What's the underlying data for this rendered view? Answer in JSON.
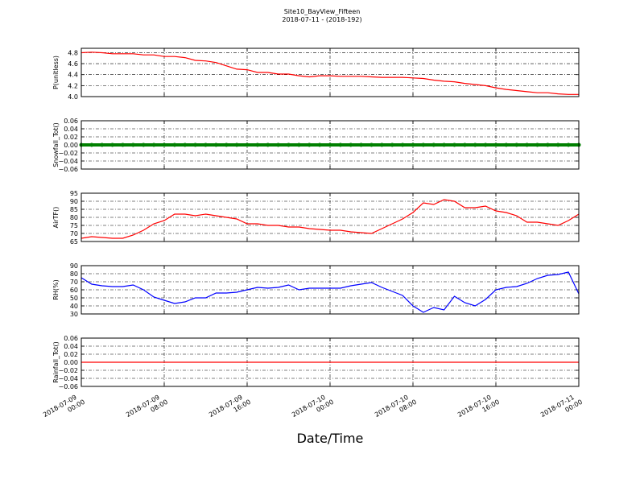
{
  "title": "Site10_BayView_Fifteen",
  "subtitle": "2018-07-11 - (2018-192)",
  "xlabel": "Date/Time",
  "xlim": [
    "2018-07-09 00:00",
    "2018-07-11 00:00"
  ],
  "xticks": [
    "2018-07-09 00:00",
    "2018-07-09 08:00",
    "2018-07-09 16:00",
    "2018-07-10 00:00",
    "2018-07-10 08:00",
    "2018-07-10 16:00",
    "2018-07-11 00:00"
  ],
  "x": [
    "2018-07-09 00:00",
    "2018-07-09 01:00",
    "2018-07-09 02:00",
    "2018-07-09 03:00",
    "2018-07-09 04:00",
    "2018-07-09 05:00",
    "2018-07-09 06:00",
    "2018-07-09 07:00",
    "2018-07-09 08:00",
    "2018-07-09 09:00",
    "2018-07-09 10:00",
    "2018-07-09 11:00",
    "2018-07-09 12:00",
    "2018-07-09 13:00",
    "2018-07-09 14:00",
    "2018-07-09 15:00",
    "2018-07-09 16:00",
    "2018-07-09 17:00",
    "2018-07-09 18:00",
    "2018-07-09 19:00",
    "2018-07-09 20:00",
    "2018-07-09 21:00",
    "2018-07-09 22:00",
    "2018-07-09 23:00",
    "2018-07-10 00:00",
    "2018-07-10 01:00",
    "2018-07-10 02:00",
    "2018-07-10 03:00",
    "2018-07-10 04:00",
    "2018-07-10 05:00",
    "2018-07-10 06:00",
    "2018-07-10 07:00",
    "2018-07-10 08:00",
    "2018-07-10 09:00",
    "2018-07-10 10:00",
    "2018-07-10 11:00",
    "2018-07-10 12:00",
    "2018-07-10 13:00",
    "2018-07-10 14:00",
    "2018-07-10 15:00",
    "2018-07-10 16:00",
    "2018-07-10 17:00",
    "2018-07-10 18:00",
    "2018-07-10 19:00",
    "2018-07-10 20:00",
    "2018-07-10 21:00",
    "2018-07-10 22:00",
    "2018-07-10 23:00",
    "2018-07-11 00:00"
  ],
  "chart_data": [
    {
      "type": "line",
      "ylabel": "P(unitless)",
      "color": "#ff0000",
      "grid": true,
      "ylim": [
        4.0,
        4.88
      ],
      "yticks": [
        {
          "value": 4,
          "label": "4.0"
        },
        4.2,
        4.4,
        4.6,
        4.8
      ],
      "values": [
        4.8,
        4.81,
        4.8,
        4.78,
        4.78,
        4.78,
        4.76,
        4.76,
        4.73,
        4.73,
        4.71,
        4.66,
        4.65,
        4.62,
        4.56,
        4.5,
        4.49,
        4.44,
        4.44,
        4.41,
        4.41,
        4.38,
        4.36,
        4.38,
        4.38,
        4.37,
        4.37,
        4.37,
        4.36,
        4.35,
        4.35,
        4.35,
        4.34,
        4.33,
        4.3,
        4.28,
        4.27,
        4.24,
        4.22,
        4.2,
        4.16,
        4.13,
        4.11,
        4.09,
        4.07,
        4.07,
        4.05,
        4.04,
        4.04
      ]
    },
    {
      "type": "dots",
      "ylabel": "Snowfall_Tot()",
      "color": "#008000",
      "grid": true,
      "ylim": [
        -0.06,
        0.06
      ],
      "yticks": [
        {
          "value": -0.06,
          "label": "−0.06"
        },
        {
          "value": -0.04,
          "label": "−0.04"
        },
        {
          "value": -0.02,
          "label": "−0.02"
        },
        {
          "value": 0,
          "label": "0.00"
        },
        0.02,
        0.04,
        0.06
      ],
      "values": [
        0,
        0,
        0,
        0,
        0,
        0,
        0,
        0,
        0,
        0,
        0,
        0,
        0,
        0,
        0,
        0,
        0,
        0,
        0,
        0,
        0,
        0,
        0,
        0,
        0,
        0,
        0,
        0,
        0,
        0,
        0,
        0,
        0,
        0,
        0,
        0,
        0,
        0,
        0,
        0,
        0,
        0,
        0,
        0,
        0,
        0,
        0,
        0,
        0
      ]
    },
    {
      "type": "line",
      "ylabel": "AirTF()",
      "color": "#ff0000",
      "grid": true,
      "ylim": [
        65,
        95
      ],
      "yticks": [
        65,
        70,
        75,
        80,
        85,
        90,
        95
      ],
      "values": [
        67,
        68,
        67.5,
        67,
        67,
        69,
        72,
        76,
        78,
        82,
        82,
        81,
        82,
        81,
        80,
        79,
        76,
        76,
        75,
        75,
        74,
        74,
        73,
        72.5,
        72,
        72,
        71,
        70.5,
        70,
        73,
        76,
        79,
        83,
        89,
        88,
        91,
        90,
        86,
        86,
        87,
        84,
        83,
        81,
        77,
        77,
        76,
        75,
        78,
        82
      ]
    },
    {
      "type": "line",
      "ylabel": "RH(%)",
      "color": "#0000ff",
      "grid": true,
      "ylim": [
        30,
        90
      ],
      "yticks": [
        30,
        40,
        50,
        60,
        70,
        80,
        90
      ],
      "values": [
        75,
        67,
        65,
        64,
        64,
        66,
        60,
        51,
        47,
        43,
        45,
        50,
        50,
        56,
        56,
        57,
        60,
        63,
        62,
        63,
        66,
        60,
        62,
        62,
        62,
        62,
        65,
        67,
        69,
        63,
        58,
        53,
        40,
        32,
        38,
        35,
        52,
        44,
        40,
        48,
        60,
        63,
        64,
        68,
        74,
        78,
        79,
        82,
        55
      ]
    },
    {
      "type": "line",
      "ylabel": "Rainfall_Tot()",
      "color": "#ff0000",
      "grid": true,
      "ylim": [
        -0.06,
        0.06
      ],
      "yticks": [
        {
          "value": -0.06,
          "label": "−0.06"
        },
        {
          "value": -0.04,
          "label": "−0.04"
        },
        {
          "value": -0.02,
          "label": "−0.02"
        },
        {
          "value": 0,
          "label": "0.00"
        },
        0.02,
        0.04,
        0.06
      ],
      "values": [
        0,
        0,
        0,
        0,
        0,
        0,
        0,
        0,
        0,
        0,
        0,
        0,
        0,
        0,
        0,
        0,
        0,
        0,
        0,
        0,
        0,
        0,
        0,
        0,
        0,
        0,
        0,
        0,
        0,
        0,
        0,
        0,
        0,
        0,
        0,
        0,
        0,
        0,
        0,
        0,
        0,
        0,
        0,
        0,
        0,
        0,
        0,
        0,
        0
      ]
    }
  ]
}
